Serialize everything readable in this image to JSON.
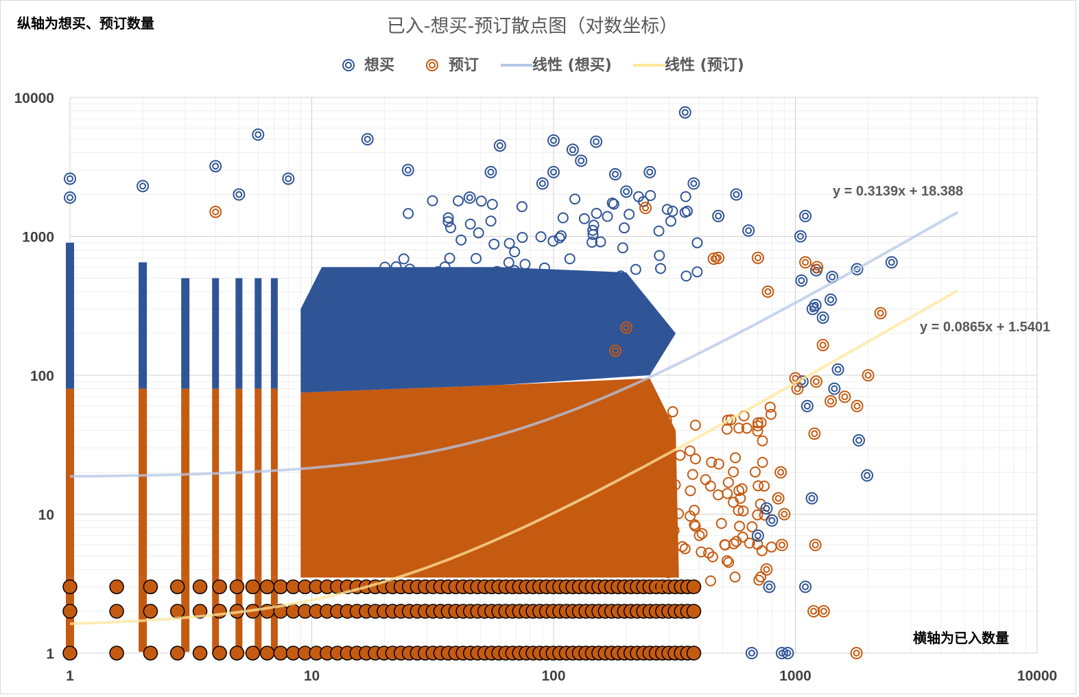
{
  "notes": {
    "y_axis": "纵轴为想买、预订数量",
    "x_axis": "横轴为已入数量"
  },
  "chart_data": {
    "type": "scatter",
    "title": "已入-想买-预订散点图（对数坐标）",
    "xlabel": "横轴为已入数量",
    "ylabel": "纵轴为想买、预订数量",
    "xscale": "log",
    "yscale": "log",
    "xlim": [
      1,
      10000
    ],
    "ylim": [
      1,
      10000
    ],
    "x_tick_labels": [
      "1",
      "10",
      "100",
      "1000",
      "10000"
    ],
    "y_tick_labels": [
      "1",
      "10",
      "100",
      "1000",
      "10000"
    ],
    "grid": "major and minor",
    "legend_position": "top",
    "legend": [
      "想买",
      "预订",
      "线性 (想买)",
      "线性 (预订)"
    ],
    "colors": {
      "want": "#2f5597",
      "reserve": "#c55a11",
      "want_trend": "#b4c7e7",
      "reserve_trend": "#ffe699"
    },
    "dense_region_approximated": true,
    "series": [
      {
        "name": "想买",
        "marker": "double-circle",
        "points": [
          [
            350,
            7800
          ],
          [
            6,
            5400
          ],
          [
            17,
            5000
          ],
          [
            100,
            4900
          ],
          [
            150,
            4800
          ],
          [
            60,
            4500
          ],
          [
            4,
            3200
          ],
          [
            120,
            4200
          ],
          [
            130,
            3500
          ],
          [
            1,
            2600
          ],
          [
            25,
            3000
          ],
          [
            100,
            2900
          ],
          [
            250,
            2900
          ],
          [
            180,
            2800
          ],
          [
            55,
            2900
          ],
          [
            2,
            2300
          ],
          [
            380,
            2400
          ],
          [
            90,
            2400
          ],
          [
            5,
            2000
          ],
          [
            8,
            2600
          ],
          [
            570,
            2000
          ],
          [
            200,
            2100
          ],
          [
            1,
            1900
          ],
          [
            45,
            1900
          ],
          [
            1100,
            1400
          ],
          [
            640,
            1100
          ],
          [
            480,
            1400
          ],
          [
            1050,
            1000
          ],
          [
            1220,
            570
          ],
          [
            1420,
            510
          ],
          [
            2500,
            650
          ],
          [
            1800,
            580
          ],
          [
            1400,
            350
          ],
          [
            1210,
            320
          ],
          [
            1180,
            300
          ],
          [
            1060,
            480
          ],
          [
            1300,
            260
          ],
          [
            1500,
            110
          ],
          [
            1450,
            80
          ],
          [
            1830,
            34
          ],
          [
            1980,
            19
          ],
          [
            1070,
            90
          ],
          [
            1120,
            60
          ],
          [
            1170,
            13
          ],
          [
            1100,
            3
          ],
          [
            930,
            1
          ],
          [
            880,
            1
          ],
          [
            660,
            1
          ],
          [
            780,
            3
          ],
          [
            700,
            7
          ],
          [
            800,
            9
          ],
          [
            760,
            11
          ]
        ]
      },
      {
        "name": "预订",
        "marker": "double-circle",
        "points": [
          [
            4,
            1500
          ],
          [
            240,
            1600
          ],
          [
            480,
            700
          ],
          [
            460,
            690
          ],
          [
            1100,
            650
          ],
          [
            1230,
            600
          ],
          [
            2250,
            280
          ],
          [
            2000,
            100
          ],
          [
            1800,
            60
          ],
          [
            1600,
            70
          ],
          [
            1300,
            165
          ],
          [
            1220,
            90
          ],
          [
            1200,
            38
          ],
          [
            1210,
            6
          ],
          [
            1190,
            2
          ],
          [
            1310,
            2
          ],
          [
            1790,
            1
          ],
          [
            870,
            20
          ],
          [
            900,
            10
          ],
          [
            850,
            13
          ],
          [
            880,
            6
          ],
          [
            760,
            4
          ],
          [
            700,
            700
          ],
          [
            770,
            400
          ],
          [
            1000,
            95
          ],
          [
            1020,
            80
          ],
          [
            1400,
            65
          ],
          [
            200,
            220
          ],
          [
            180,
            150
          ]
        ]
      }
    ],
    "trendlines": [
      {
        "name": "线性 (想买)",
        "equation": "y = 0.3139x + 18.388",
        "slope": 0.3139,
        "intercept": 18.388,
        "x_range": [
          1,
          4700
        ]
      },
      {
        "name": "线性 (预订)",
        "equation": "y = 0.0865x + 1.5401",
        "slope": 0.0865,
        "intercept": 1.5401,
        "x_range": [
          1,
          4700
        ]
      }
    ]
  }
}
